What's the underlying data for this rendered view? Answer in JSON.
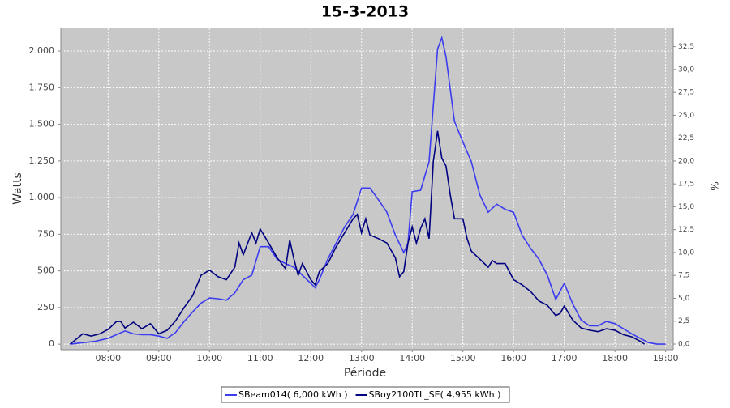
{
  "chart_data": {
    "type": "line",
    "title": "15-3-2013",
    "xlabel": "Période",
    "ylabel": "Watts",
    "y2label": "%",
    "xlim": [
      "07:04",
      "19:09"
    ],
    "xticks": [
      "08:00",
      "09:00",
      "10:00",
      "11:00",
      "12:00",
      "13:00",
      "14:00",
      "15:00",
      "16:00",
      "17:00",
      "18:00",
      "19:00"
    ],
    "ylim": [
      -38,
      2155
    ],
    "yticks": [
      0,
      250,
      500,
      750,
      {
        "value": 1000,
        "label": "1.000"
      },
      {
        "value": 1250,
        "label": "1.250"
      },
      {
        "value": 1500,
        "label": "1.500"
      },
      {
        "value": 1750,
        "label": "1.750"
      },
      {
        "value": 2000,
        "label": "2.000"
      }
    ],
    "y2lim": [
      -0.62,
      34.5
    ],
    "y2ticks": [
      {
        "value": 0,
        "label": "0,0"
      },
      {
        "value": 2.5,
        "label": "2,5"
      },
      {
        "value": 5,
        "label": "5,0"
      },
      {
        "value": 7.5,
        "label": "7,5"
      },
      {
        "value": 10,
        "label": "10,0"
      },
      {
        "value": 12.5,
        "label": "12,5"
      },
      {
        "value": 15,
        "label": "15,0"
      },
      {
        "value": 17.5,
        "label": "17,5"
      },
      {
        "value": 20,
        "label": "20,0"
      },
      {
        "value": 22.5,
        "label": "22,5"
      },
      {
        "value": 25,
        "label": "25,0"
      },
      {
        "value": 27.5,
        "label": "27,5"
      },
      {
        "value": 30,
        "label": "30,0"
      },
      {
        "value": 32.5,
        "label": "32,5"
      }
    ],
    "grid": true,
    "legend": "bottom",
    "series": [
      {
        "name": "SBeam014( 6,000 kWh )",
        "color": "#3c3cf0",
        "x": [
          "07:15",
          "07:30",
          "07:45",
          "08:00",
          "08:10",
          "08:20",
          "08:30",
          "08:40",
          "08:50",
          "09:00",
          "09:10",
          "09:20",
          "09:30",
          "09:40",
          "09:50",
          "10:00",
          "10:10",
          "10:20",
          "10:30",
          "10:40",
          "10:50",
          "11:00",
          "11:10",
          "11:20",
          "11:30",
          "11:40",
          "11:50",
          "12:00",
          "12:05",
          "12:10",
          "12:20",
          "12:30",
          "12:40",
          "12:50",
          "13:00",
          "13:10",
          "13:20",
          "13:30",
          "13:40",
          "13:50",
          "13:55",
          "14:00",
          "14:10",
          "14:20",
          "14:30",
          "14:35",
          "14:40",
          "14:50",
          "15:00",
          "15:10",
          "15:20",
          "15:30",
          "15:40",
          "15:50",
          "16:00",
          "16:10",
          "16:20",
          "16:30",
          "16:40",
          "16:50",
          "17:00",
          "17:10",
          "17:20",
          "17:30",
          "17:40",
          "17:50",
          "18:00",
          "18:10",
          "18:20",
          "18:30",
          "18:40",
          "18:50",
          "19:00"
        ],
        "values": [
          0,
          10,
          20,
          40,
          65,
          90,
          70,
          65,
          65,
          55,
          40,
          80,
          155,
          220,
          280,
          315,
          310,
          300,
          350,
          440,
          470,
          665,
          665,
          580,
          550,
          525,
          470,
          415,
          385,
          440,
          580,
          690,
          800,
          885,
          1065,
          1065,
          985,
          900,
          745,
          625,
          690,
          1040,
          1050,
          1245,
          2015,
          2090,
          1960,
          1520,
          1380,
          1245,
          1020,
          900,
          955,
          920,
          900,
          745,
          655,
          580,
          470,
          305,
          415,
          275,
          165,
          125,
          125,
          155,
          140,
          105,
          70,
          40,
          10,
          0,
          0
        ]
      },
      {
        "name": "SBoy2100TL_SE( 4,955 kWh )",
        "color": "#000080",
        "x": [
          "07:15",
          "07:30",
          "07:40",
          "07:50",
          "08:00",
          "08:10",
          "08:15",
          "08:20",
          "08:30",
          "08:40",
          "08:50",
          "09:00",
          "09:10",
          "09:20",
          "09:30",
          "09:40",
          "09:50",
          "10:00",
          "10:10",
          "10:20",
          "10:30",
          "10:35",
          "10:40",
          "10:50",
          "10:55",
          "11:00",
          "11:10",
          "11:20",
          "11:30",
          "11:35",
          "11:40",
          "11:45",
          "11:50",
          "12:00",
          "12:05",
          "12:10",
          "12:20",
          "12:30",
          "12:40",
          "12:50",
          "12:55",
          "13:00",
          "13:05",
          "13:10",
          "13:20",
          "13:30",
          "13:40",
          "13:45",
          "13:50",
          "13:55",
          "14:00",
          "14:05",
          "14:10",
          "14:15",
          "14:20",
          "14:25",
          "14:30",
          "14:35",
          "14:40",
          "14:45",
          "14:50",
          "15:00",
          "15:05",
          "15:10",
          "15:20",
          "15:30",
          "15:35",
          "15:40",
          "15:50",
          "16:00",
          "16:10",
          "16:20",
          "16:30",
          "16:40",
          "16:50",
          "16:55",
          "17:00",
          "17:10",
          "17:20",
          "17:30",
          "17:40",
          "17:50",
          "18:00",
          "18:10",
          "18:20",
          "18:30",
          "18:35"
        ],
        "values": [
          0,
          70,
          55,
          70,
          100,
          155,
          155,
          110,
          150,
          105,
          140,
          70,
          95,
          160,
          250,
          330,
          470,
          505,
          460,
          440,
          525,
          690,
          610,
          760,
          690,
          785,
          690,
          590,
          515,
          710,
          580,
          470,
          550,
          440,
          405,
          495,
          550,
          665,
          760,
          855,
          885,
          760,
          855,
          745,
          720,
          690,
          590,
          460,
          495,
          690,
          800,
          690,
          790,
          855,
          720,
          1245,
          1455,
          1270,
          1215,
          1020,
          855,
          855,
          720,
          635,
          580,
          525,
          570,
          550,
          550,
          440,
          405,
          360,
          295,
          265,
          195,
          210,
          260,
          165,
          110,
          95,
          85,
          105,
          95,
          65,
          50,
          20,
          0
        ]
      }
    ]
  }
}
